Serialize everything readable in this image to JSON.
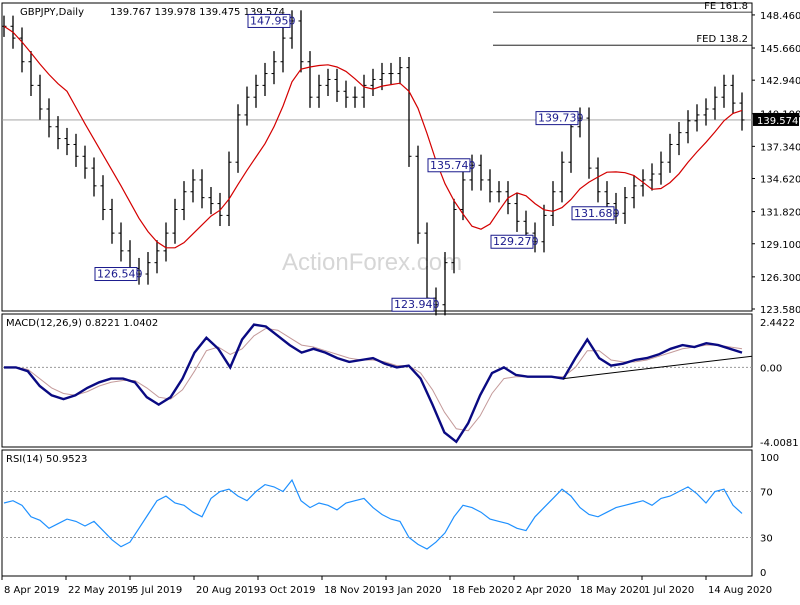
{
  "header": {
    "symbol": "GBPJPY,Daily",
    "ohlc": "139.767 139.978 139.475 139.574",
    "macd_label": "MACD(12,26,9) 0.8221 1.0402",
    "rsi_label": "RSI(14) 50.9523"
  },
  "watermark": "ActionForex.com",
  "colors": {
    "price_bars": "#000000",
    "moving_average": "#d40000",
    "macd_line": "#0a0a82",
    "macd_signal": "#c49a9a",
    "rsi_line": "#1e90ff",
    "annotation": "#1a1a8c"
  },
  "x_axis": {
    "labels": [
      "8 Apr 2019",
      "22 May 2019",
      "5 Jul 2019",
      "20 Aug 2019",
      "3 Oct 2019",
      "18 Nov 2019",
      "3 Jan 2020",
      "18 Feb 2020",
      "2 Apr 2020",
      "18 May 2020",
      "1 Jul 2020",
      "14 Aug 2020"
    ]
  },
  "chart_data": [
    {
      "type": "line",
      "name": "price",
      "series": [
        {
          "name": "",
          "values": [
            147.5,
            146.5,
            144.5,
            142.5,
            140.5,
            139.0,
            138.0,
            137.5,
            136.5,
            135.5,
            134.0,
            132.0,
            130.0,
            128.5,
            127.0,
            126.54,
            127.5,
            128.5,
            130.0,
            132.0,
            133.5,
            134.5,
            133.0,
            132.5,
            131.5,
            136.0,
            140.0,
            141.5,
            142.5,
            143.5,
            144.5,
            146.5,
            147.95,
            144.5,
            141.5,
            142.5,
            143.0,
            142.0,
            141.5,
            141.5,
            142.5,
            143.0,
            143.5,
            143.5,
            144.0,
            136.5,
            130.0,
            124.5,
            123.94,
            127.5,
            132.0,
            134.5,
            135.74,
            134.5,
            133.5,
            133.5,
            132.5,
            131.0,
            130.0,
            129.27,
            131.5,
            133.5,
            136.0,
            139.0,
            139.73,
            135.5,
            133.5,
            132.5,
            131.68,
            133.0,
            134.0,
            134.5,
            135.0,
            136.0,
            137.5,
            138.5,
            139.5,
            140.0,
            140.5,
            141.5,
            142.5,
            141.0,
            139.574
          ]
        }
      ],
      "x_range_label": [
        "8 Apr 2019",
        "14 Aug 2020"
      ],
      "ylim": [
        123.58,
        149.3
      ],
      "y_ticks": [
        123.58,
        126.3,
        129.1,
        131.82,
        134.62,
        137.34,
        140.1,
        142.94,
        145.66,
        148.46
      ],
      "y_tick_labels": [
        "123.580",
        "126.300",
        "129.100",
        "131.820",
        "134.620",
        "137.340",
        "140.100",
        "142.940",
        "145.660",
        "148.460"
      ],
      "current_price_label": "139.574",
      "annotations": [
        "147.950",
        "126.540",
        "135.740",
        "123.940",
        "129.270",
        "139.730",
        "131.680"
      ],
      "fib_lines": [
        {
          "label": "FE 161.8",
          "value": 148.7
        },
        {
          "label": "FED 138.2",
          "value": 145.9
        }
      ],
      "horizontal_line": 139.574,
      "grid": false
    },
    {
      "type": "line",
      "name": "MACD(12,26,9)",
      "series": [
        {
          "name": "MACD",
          "values": [
            0.0,
            0.0,
            -0.2,
            -1.0,
            -1.5,
            -1.7,
            -1.5,
            -1.1,
            -0.8,
            -0.6,
            -0.6,
            -0.8,
            -1.6,
            -2.0,
            -1.6,
            -0.6,
            0.8,
            1.6,
            1.0,
            0.0,
            1.5,
            2.3,
            2.2,
            1.7,
            1.2,
            0.8,
            1.0,
            0.8,
            0.5,
            0.3,
            0.4,
            0.5,
            0.2,
            0.0,
            0.1,
            -0.6,
            -2.0,
            -3.5,
            -4.0,
            -3.0,
            -1.5,
            -0.3,
            0.0,
            -0.4,
            -0.5,
            -0.5,
            -0.5,
            -0.6,
            0.5,
            1.5,
            0.5,
            0.1,
            0.2,
            0.4,
            0.5,
            0.7,
            1.0,
            1.2,
            1.1,
            1.3,
            1.2,
            1.0,
            0.8
          ]
        },
        {
          "name": "Signal",
          "values": [
            0.0,
            0.0,
            -0.1,
            -0.6,
            -1.1,
            -1.4,
            -1.5,
            -1.3,
            -1.0,
            -0.8,
            -0.7,
            -0.7,
            -1.1,
            -1.6,
            -1.7,
            -1.2,
            -0.2,
            0.9,
            1.1,
            0.7,
            1.0,
            1.7,
            2.1,
            2.0,
            1.6,
            1.2,
            1.1,
            0.9,
            0.7,
            0.5,
            0.4,
            0.4,
            0.3,
            0.1,
            0.1,
            -0.3,
            -1.2,
            -2.4,
            -3.3,
            -3.4,
            -2.6,
            -1.4,
            -0.6,
            -0.5,
            -0.5,
            -0.5,
            -0.5,
            -0.5,
            0.0,
            0.9,
            0.9,
            0.4,
            0.3,
            0.3,
            0.4,
            0.6,
            0.8,
            1.0,
            1.1,
            1.2,
            1.2,
            1.1,
            1.0
          ]
        }
      ],
      "ylim": [
        -4.0081,
        2.4422
      ],
      "y_tick_labels": [
        "2.4422",
        "0.00",
        "-4.0081"
      ],
      "grid": false
    },
    {
      "type": "line",
      "name": "RSI(14)",
      "series": [
        {
          "name": "RSI",
          "values": [
            60,
            62,
            58,
            48,
            45,
            38,
            42,
            46,
            44,
            40,
            44,
            36,
            28,
            22,
            26,
            38,
            50,
            62,
            66,
            60,
            58,
            52,
            48,
            64,
            70,
            72,
            66,
            62,
            70,
            76,
            74,
            70,
            80,
            62,
            56,
            60,
            58,
            54,
            60,
            62,
            64,
            56,
            50,
            46,
            44,
            30,
            24,
            20,
            26,
            34,
            48,
            58,
            56,
            52,
            46,
            44,
            42,
            38,
            36,
            48,
            56,
            64,
            72,
            66,
            56,
            50,
            48,
            52,
            56,
            58,
            60,
            62,
            58,
            64,
            66,
            70,
            74,
            68,
            60,
            70,
            72,
            58,
            51
          ]
        }
      ],
      "ylim": [
        0,
        100
      ],
      "y_tick_labels": [
        "100",
        "70",
        "30",
        "0"
      ],
      "reference_lines": [
        70,
        30
      ]
    }
  ]
}
